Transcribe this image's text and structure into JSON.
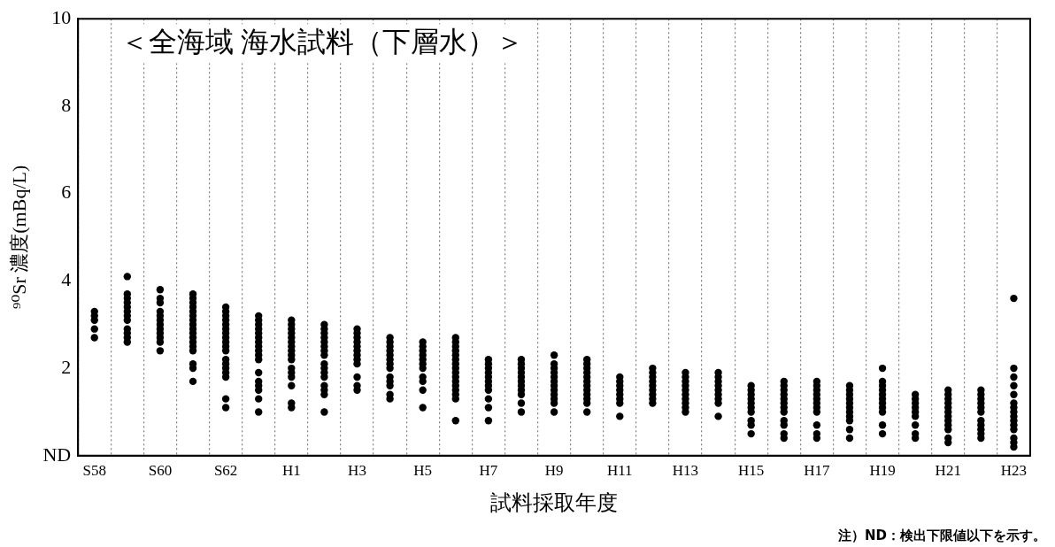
{
  "chart_data": {
    "type": "scatter",
    "title": "＜全海域 海水試料（下層水）＞",
    "xlabel": "試料採取年度",
    "ylabel": "⁹⁰Sr 濃度(mBq/L)",
    "annotations": [
      "注）ND：検出下限値以下を示す。"
    ],
    "categories": [
      "S58",
      null,
      "S60",
      null,
      "S62",
      null,
      "H1",
      null,
      "H3",
      null,
      "H5",
      null,
      "H7",
      null,
      "H9",
      null,
      "H11",
      null,
      "H13",
      null,
      "H15",
      null,
      "H17",
      null,
      "H19",
      null,
      "H21",
      null,
      "H23"
    ],
    "ylim": [
      0,
      10
    ],
    "yticks": [
      {
        "value": 0,
        "label": "ND"
      },
      2,
      4,
      6,
      8,
      10
    ],
    "marker": "circle",
    "grid": "x",
    "series": [
      {
        "color": "#000000",
        "values": [
          3.3,
          4.1,
          3.8,
          3.7,
          3.4,
          3.2,
          3.1,
          3.0,
          2.9,
          2.7,
          2.6,
          2.7,
          2.2,
          2.2,
          2.3,
          2.2,
          1.8,
          2.0,
          1.9,
          1.9,
          1.6,
          1.7,
          1.7,
          1.6,
          2.0,
          1.4,
          1.5,
          1.5,
          3.6
        ]
      },
      {
        "color": "#000000",
        "values": [
          3.2,
          3.7,
          3.6,
          3.6,
          3.3,
          3.1,
          3.0,
          2.9,
          2.8,
          2.6,
          2.5,
          2.6,
          2.1,
          2.1,
          2.1,
          2.1,
          1.7,
          1.9,
          1.8,
          1.8,
          1.5,
          1.6,
          1.6,
          1.5,
          1.7,
          1.3,
          1.4,
          1.4,
          2.0
        ]
      },
      {
        "color": "#000000",
        "values": [
          3.1,
          3.6,
          3.5,
          3.5,
          3.2,
          3.0,
          2.9,
          2.8,
          2.7,
          2.5,
          2.4,
          2.5,
          2.0,
          2.0,
          2.0,
          2.0,
          1.6,
          1.8,
          1.7,
          1.7,
          1.4,
          1.5,
          1.5,
          1.4,
          1.6,
          1.2,
          1.3,
          1.3,
          1.8
        ]
      },
      {
        "color": "#000000",
        "values": [
          2.9,
          3.5,
          3.3,
          3.4,
          3.1,
          2.9,
          2.8,
          2.7,
          2.6,
          2.4,
          2.3,
          2.4,
          1.9,
          1.9,
          1.9,
          1.9,
          1.5,
          1.7,
          1.6,
          1.6,
          1.3,
          1.4,
          1.4,
          1.3,
          1.5,
          1.1,
          1.2,
          1.2,
          1.6
        ]
      },
      {
        "color": "#000000",
        "values": [
          2.7,
          3.4,
          3.2,
          3.3,
          3.0,
          2.8,
          2.7,
          2.6,
          2.5,
          2.3,
          2.2,
          2.3,
          1.8,
          1.8,
          1.8,
          1.8,
          1.4,
          1.6,
          1.5,
          1.5,
          1.2,
          1.3,
          1.3,
          1.2,
          1.4,
          1.0,
          1.1,
          1.1,
          1.4
        ]
      },
      {
        "color": "#000000",
        "values": [
          null,
          3.3,
          3.1,
          3.2,
          2.9,
          2.7,
          2.6,
          2.5,
          2.4,
          2.2,
          2.1,
          2.2,
          1.7,
          1.7,
          1.7,
          1.7,
          1.3,
          1.5,
          1.4,
          1.4,
          1.1,
          1.2,
          1.2,
          1.1,
          1.3,
          0.9,
          1.0,
          1.0,
          1.2
        ]
      },
      {
        "color": "#000000",
        "values": [
          null,
          3.2,
          3.0,
          3.1,
          2.8,
          2.6,
          2.5,
          2.4,
          2.3,
          2.1,
          2.0,
          2.1,
          1.6,
          1.6,
          1.6,
          1.6,
          1.2,
          1.4,
          1.3,
          1.3,
          1.0,
          1.1,
          1.1,
          1.0,
          1.2,
          0.7,
          0.9,
          0.8,
          1.1
        ]
      },
      {
        "color": "#000000",
        "values": [
          null,
          3.1,
          2.9,
          3.0,
          2.7,
          2.5,
          2.4,
          2.3,
          2.2,
          2.0,
          1.8,
          2.0,
          1.5,
          1.5,
          1.5,
          1.5,
          0.9,
          1.3,
          1.2,
          1.2,
          0.8,
          1.0,
          1.0,
          0.9,
          1.1,
          0.5,
          0.8,
          0.7,
          1.0
        ]
      },
      {
        "color": "#000000",
        "values": [
          null,
          2.9,
          2.8,
          2.9,
          2.6,
          2.4,
          2.3,
          2.1,
          2.1,
          1.8,
          1.7,
          1.9,
          1.3,
          1.4,
          1.4,
          1.4,
          null,
          1.2,
          1.1,
          0.9,
          0.7,
          0.8,
          0.7,
          0.8,
          1.0,
          0.4,
          0.7,
          0.6,
          0.9
        ]
      },
      {
        "color": "#000000",
        "values": [
          null,
          2.8,
          2.7,
          2.8,
          2.5,
          2.3,
          2.2,
          2.0,
          1.8,
          1.7,
          1.5,
          1.8,
          1.1,
          1.2,
          1.3,
          1.3,
          null,
          null,
          1.0,
          null,
          0.5,
          0.7,
          0.5,
          0.6,
          0.7,
          null,
          0.6,
          0.5,
          0.8
        ]
      },
      {
        "color": "#000000",
        "values": [
          null,
          2.7,
          2.6,
          2.7,
          2.4,
          2.2,
          2.0,
          1.9,
          1.6,
          1.6,
          1.1,
          1.7,
          0.8,
          1.0,
          1.2,
          1.2,
          null,
          null,
          null,
          null,
          null,
          0.5,
          0.4,
          0.4,
          0.5,
          null,
          0.4,
          0.4,
          0.7
        ]
      },
      {
        "color": "#000000",
        "values": [
          null,
          2.6,
          2.4,
          2.6,
          2.2,
          1.9,
          1.9,
          1.8,
          1.5,
          1.4,
          null,
          1.6,
          null,
          null,
          1.0,
          1.0,
          null,
          null,
          null,
          null,
          null,
          0.4,
          null,
          null,
          null,
          null,
          0.3,
          null,
          0.6
        ]
      },
      {
        "color": "#000000",
        "values": [
          null,
          null,
          null,
          2.5,
          2.1,
          1.7,
          1.8,
          1.6,
          null,
          1.3,
          null,
          1.5,
          null,
          null,
          null,
          null,
          null,
          null,
          null,
          null,
          null,
          null,
          null,
          null,
          null,
          null,
          null,
          null,
          0.4
        ]
      },
      {
        "color": "#000000",
        "values": [
          null,
          null,
          null,
          2.4,
          2.0,
          1.6,
          1.6,
          1.5,
          null,
          null,
          null,
          1.4,
          null,
          null,
          null,
          null,
          null,
          null,
          null,
          null,
          null,
          null,
          null,
          null,
          null,
          null,
          null,
          null,
          0.3
        ]
      },
      {
        "color": "#000000",
        "values": [
          null,
          null,
          null,
          2.1,
          1.9,
          1.5,
          1.2,
          1.4,
          null,
          null,
          null,
          1.3,
          null,
          null,
          null,
          null,
          null,
          null,
          null,
          null,
          null,
          null,
          null,
          null,
          null,
          null,
          null,
          null,
          0.2
        ]
      },
      {
        "color": "#000000",
        "values": [
          null,
          null,
          null,
          2.0,
          1.8,
          1.3,
          1.1,
          1.0,
          null,
          null,
          null,
          0.8,
          null,
          null,
          null,
          null,
          null,
          null,
          null,
          null,
          null,
          null,
          null,
          null,
          null,
          null,
          null,
          null,
          null
        ]
      },
      {
        "color": "#000000",
        "values": [
          null,
          null,
          null,
          1.7,
          1.3,
          1.0,
          null,
          null,
          null,
          null,
          null,
          null,
          null,
          null,
          null,
          null,
          null,
          null,
          null,
          null,
          null,
          null,
          null,
          null,
          null,
          null,
          null,
          null,
          null
        ]
      },
      {
        "color": "#000000",
        "values": [
          null,
          null,
          null,
          null,
          1.1,
          null,
          null,
          null,
          null,
          null,
          null,
          null,
          null,
          null,
          null,
          null,
          null,
          null,
          null,
          null,
          null,
          null,
          null,
          null,
          null,
          null,
          null,
          null,
          null
        ]
      }
    ]
  }
}
